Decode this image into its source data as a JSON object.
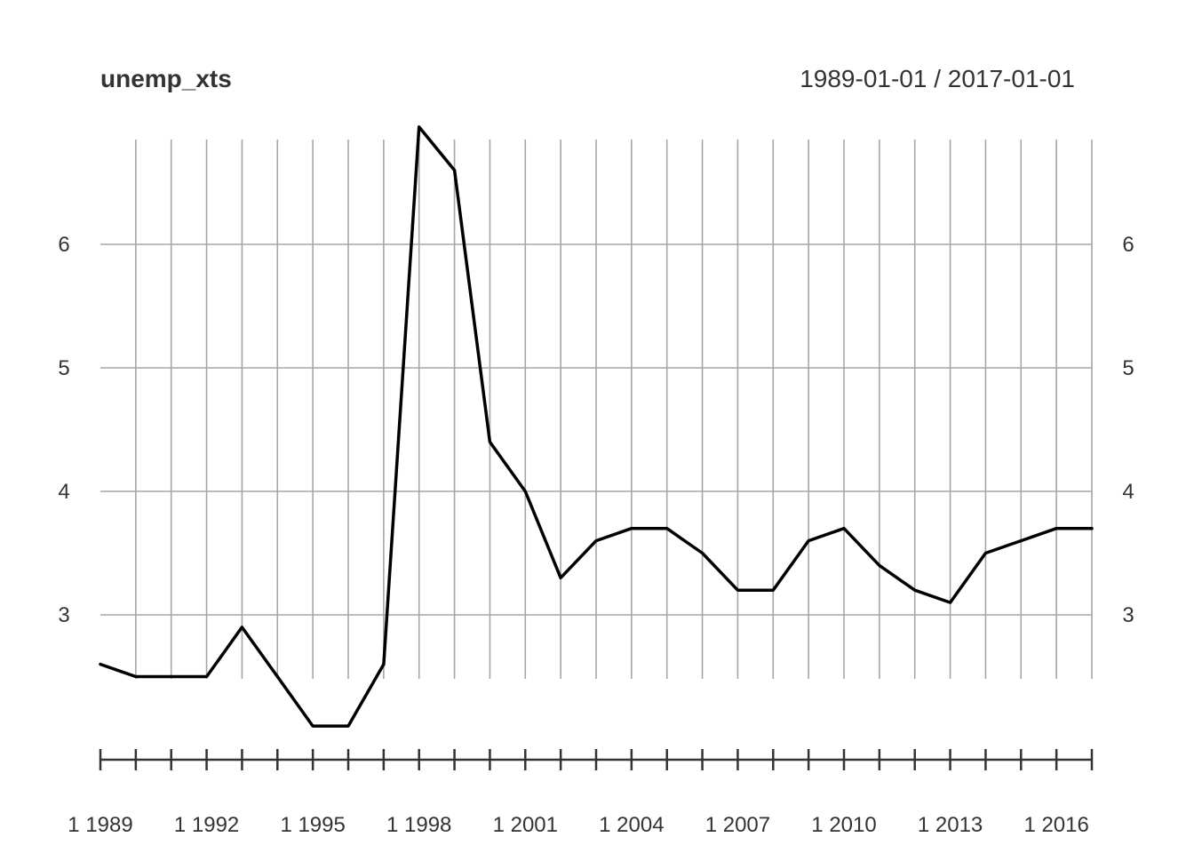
{
  "chart_data": {
    "type": "line",
    "title": "unemp_xts",
    "date_range": "1989-01-01 / 2017-01-01",
    "xlabel": "",
    "ylabel": "",
    "x": [
      "1989-01-01",
      "1990-01-01",
      "1991-01-01",
      "1992-01-01",
      "1993-01-01",
      "1994-01-01",
      "1995-01-01",
      "1996-01-01",
      "1997-01-01",
      "1998-01-01",
      "1999-01-01",
      "2000-01-01",
      "2001-01-01",
      "2002-01-01",
      "2003-01-01",
      "2004-01-01",
      "2005-01-01",
      "2006-01-01",
      "2007-01-01",
      "2008-01-01",
      "2009-01-01",
      "2010-01-01",
      "2011-01-01",
      "2012-01-01",
      "2013-01-01",
      "2014-01-01",
      "2015-01-01",
      "2016-01-01",
      "2017-01-01"
    ],
    "values": [
      2.6,
      2.5,
      2.5,
      2.5,
      2.9,
      2.5,
      2.1,
      2.1,
      2.6,
      6.95,
      6.6,
      4.4,
      4.0,
      3.3,
      3.6,
      3.7,
      3.7,
      3.5,
      3.2,
      3.2,
      3.6,
      3.7,
      3.4,
      3.2,
      3.1,
      3.5,
      3.6,
      3.7,
      3.7
    ],
    "x_tick_labels": [
      "1 1989",
      "1 1992",
      "1 1995",
      "1 1998",
      "1 2001",
      "1 2004",
      "1 2007",
      "1 2010",
      "1 2013",
      "1 2016"
    ],
    "y_ticks": [
      3,
      4,
      5,
      6
    ],
    "y_tick_labels": [
      "3",
      "4",
      "5",
      "6"
    ],
    "ylim": [
      1.8,
      7.0
    ],
    "grid": true,
    "line_color": "#000000",
    "grid_color": "#a6a6a6",
    "text_color": "#333333"
  }
}
